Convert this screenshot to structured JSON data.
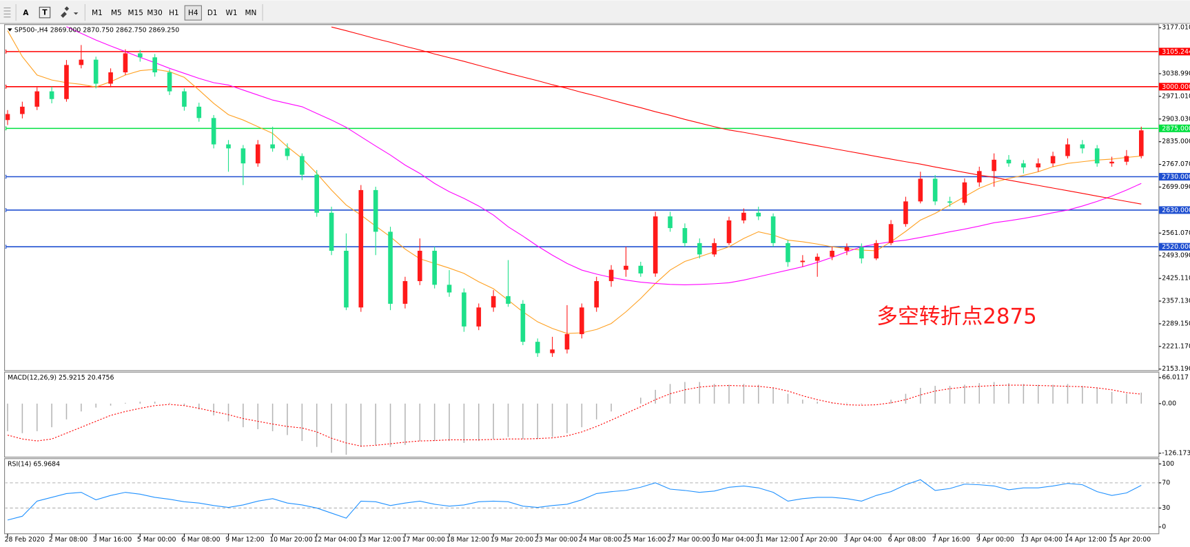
{
  "toolbar": {
    "tools": [
      "A"
    ],
    "timeframes": [
      "M1",
      "M5",
      "M15",
      "M30",
      "H1",
      "H4",
      "D1",
      "W1",
      "MN"
    ],
    "active": "H4"
  },
  "chart_data": [
    {
      "type": "candlestick",
      "title": "SP500-,H4  2869.000 2870.750 2862.750 2869.250",
      "annotation": "多空转折点2875",
      "categories": [
        "28 Feb 2020",
        null,
        null,
        "2 Mar 08:00",
        null,
        null,
        "3 Mar 16:00",
        null,
        null,
        "5 Mar 00:00",
        null,
        null,
        "6 Mar 08:00",
        null,
        null,
        "9 Mar 12:00",
        null,
        null,
        "10 Mar 20:00",
        null,
        null,
        "12 Mar 04:00",
        null,
        null,
        "13 Mar 12:00",
        null,
        null,
        "17 Mar 00:00",
        null,
        null,
        "18 Mar 12:00",
        null,
        null,
        "19 Mar 20:00",
        null,
        null,
        "23 Mar 00:00",
        null,
        null,
        "24 Mar 08:00",
        null,
        null,
        "25 Mar 16:00",
        null,
        null,
        "27 Mar 00:00",
        null,
        null,
        "30 Mar 04:00",
        null,
        null,
        "31 Mar 12:00",
        null,
        null,
        "1 Apr 20:00",
        null,
        null,
        "3 Apr 04:00",
        null,
        null,
        "6 Apr 08:00",
        null,
        null,
        "7 Apr 16:00",
        null,
        null,
        "9 Apr 00:00",
        null,
        null,
        "13 Apr 04:00",
        null,
        null,
        "14 Apr 12:00",
        null,
        null,
        "15 Apr 20:00",
        null,
        null
      ],
      "candles": [
        [
          2900,
          2930,
          2885,
          2918
        ],
        [
          2918,
          2955,
          2905,
          2940
        ],
        [
          2940,
          2998,
          2930,
          2986
        ],
        [
          2986,
          3000,
          2950,
          2963
        ],
        [
          2963,
          3080,
          2955,
          3065
        ],
        [
          3065,
          3125,
          3055,
          3081
        ],
        [
          3081,
          3090,
          2995,
          3009
        ],
        [
          3009,
          3055,
          2998,
          3043
        ],
        [
          3043,
          3112,
          3035,
          3100
        ],
        [
          3100,
          3110,
          3075,
          3088
        ],
        [
          3088,
          3098,
          3030,
          3043
        ],
        [
          3043,
          3052,
          2975,
          2986
        ],
        [
          2986,
          2995,
          2928,
          2940
        ],
        [
          2940,
          2952,
          2895,
          2906
        ],
        [
          2906,
          2915,
          2815,
          2827
        ],
        [
          2827,
          2840,
          2745,
          2815
        ],
        [
          2815,
          2825,
          2705,
          2770
        ],
        [
          2770,
          2840,
          2760,
          2827
        ],
        [
          2827,
          2880,
          2805,
          2815
        ],
        [
          2815,
          2830,
          2780,
          2792
        ],
        [
          2792,
          2800,
          2720,
          2736
        ],
        [
          2736,
          2750,
          2610,
          2622
        ],
        [
          2622,
          2640,
          2495,
          2508
        ],
        [
          2508,
          2560,
          2330,
          2338
        ],
        [
          2338,
          2705,
          2325,
          2690
        ],
        [
          2690,
          2700,
          2495,
          2565
        ],
        [
          2565,
          2580,
          2330,
          2349
        ],
        [
          2349,
          2430,
          2335,
          2417
        ],
        [
          2417,
          2545,
          2405,
          2508
        ],
        [
          2508,
          2520,
          2395,
          2406
        ],
        [
          2406,
          2450,
          2370,
          2383
        ],
        [
          2383,
          2395,
          2265,
          2281
        ],
        [
          2281,
          2350,
          2270,
          2338
        ],
        [
          2338,
          2390,
          2325,
          2372
        ],
        [
          2372,
          2480,
          2340,
          2349
        ],
        [
          2349,
          2360,
          2225,
          2235
        ],
        [
          2235,
          2245,
          2190,
          2201
        ],
        [
          2201,
          2250,
          2190,
          2212
        ],
        [
          2212,
          2345,
          2200,
          2258
        ],
        [
          2258,
          2350,
          2245,
          2338
        ],
        [
          2338,
          2430,
          2325,
          2417
        ],
        [
          2417,
          2465,
          2400,
          2451
        ],
        [
          2451,
          2520,
          2430,
          2463
        ],
        [
          2463,
          2475,
          2430,
          2440
        ],
        [
          2440,
          2625,
          2430,
          2611
        ],
        [
          2611,
          2625,
          2565,
          2576
        ],
        [
          2576,
          2590,
          2520,
          2531
        ],
        [
          2531,
          2545,
          2485,
          2497
        ],
        [
          2497,
          2545,
          2490,
          2531
        ],
        [
          2531,
          2610,
          2525,
          2599
        ],
        [
          2599,
          2635,
          2590,
          2622
        ],
        [
          2622,
          2640,
          2600,
          2611
        ],
        [
          2611,
          2620,
          2520,
          2531
        ],
        [
          2531,
          2540,
          2460,
          2474
        ],
        [
          2474,
          2495,
          2460,
          2478
        ],
        [
          2478,
          2500,
          2430,
          2490
        ],
        [
          2490,
          2520,
          2480,
          2508
        ],
        [
          2508,
          2530,
          2495,
          2519
        ],
        [
          2519,
          2530,
          2470,
          2485
        ],
        [
          2485,
          2540,
          2480,
          2531
        ],
        [
          2531,
          2600,
          2525,
          2588
        ],
        [
          2588,
          2670,
          2580,
          2656
        ],
        [
          2656,
          2745,
          2650,
          2724
        ],
        [
          2724,
          2735,
          2645,
          2656
        ],
        [
          2656,
          2670,
          2640,
          2652
        ],
        [
          2652,
          2725,
          2645,
          2713
        ],
        [
          2713,
          2760,
          2700,
          2747
        ],
        [
          2747,
          2800,
          2700,
          2781
        ],
        [
          2781,
          2795,
          2760,
          2770
        ],
        [
          2770,
          2780,
          2740,
          2758
        ],
        [
          2758,
          2785,
          2745,
          2770
        ],
        [
          2770,
          2805,
          2760,
          2792
        ],
        [
          2792,
          2845,
          2785,
          2827
        ],
        [
          2827,
          2840,
          2800,
          2815
        ],
        [
          2815,
          2825,
          2760,
          2770
        ],
        [
          2770,
          2790,
          2760,
          2775
        ],
        [
          2775,
          2810,
          2765,
          2792
        ],
        [
          2792,
          2880,
          2785,
          2869
        ]
      ],
      "up_color": "#ff1a1a",
      "down_color": "#1ee08a",
      "series": [
        {
          "color": "#ffa020",
          "values": [
            3168,
            3090,
            3035,
            3020,
            3012,
            3007,
            2999,
            3015,
            3035,
            3048,
            3052,
            3045,
            3028,
            2990,
            2950,
            2916,
            2900,
            2880,
            2860,
            2820,
            2785,
            2740,
            2690,
            2645,
            2615,
            2582,
            2550,
            2513,
            2484,
            2470,
            2456,
            2440,
            2415,
            2394,
            2360,
            2325,
            2295,
            2275,
            2260,
            2262,
            2272,
            2290,
            2325,
            2365,
            2410,
            2450,
            2476,
            2490,
            2505,
            2520,
            2545,
            2565,
            2555,
            2540,
            2535,
            2528,
            2520,
            2515,
            2510,
            2508,
            2535,
            2566,
            2600,
            2620,
            2645,
            2670,
            2695,
            2713,
            2725,
            2734,
            2745,
            2760,
            2770,
            2775,
            2780,
            2783,
            2788,
            2792
          ]
        },
        {
          "color": "#ff00ff",
          "values": [
            null,
            null,
            null,
            null,
            3180,
            3160,
            3140,
            3122,
            3105,
            3088,
            3072,
            3055,
            3040,
            3025,
            3012,
            3005,
            2990,
            2975,
            2960,
            2950,
            2940,
            2920,
            2900,
            2878,
            2850,
            2822,
            2795,
            2765,
            2740,
            2710,
            2685,
            2665,
            2642,
            2615,
            2580,
            2552,
            2522,
            2495,
            2470,
            2450,
            2438,
            2428,
            2420,
            2414,
            2410,
            2407,
            2406,
            2407,
            2409,
            2412,
            2420,
            2430,
            2440,
            2450,
            2460,
            2473,
            2488,
            2505,
            2520,
            2528,
            2535,
            2540,
            2548,
            2556,
            2565,
            2573,
            2582,
            2592,
            2598,
            2605,
            2613,
            2622,
            2630,
            2642,
            2656,
            2672,
            2690,
            2710
          ]
        },
        {
          "color": "#ff0000",
          "values": [
            null,
            null,
            null,
            null,
            null,
            null,
            null,
            null,
            null,
            null,
            null,
            null,
            null,
            null,
            null,
            null,
            null,
            null,
            null,
            null,
            null,
            null,
            3179,
            3168,
            3156,
            3144,
            3133,
            3121,
            3110,
            3098,
            3087,
            3076,
            3064,
            3052,
            3040,
            3029,
            3018,
            3006,
            2995,
            2983,
            2972,
            2960,
            2948,
            2937,
            2925,
            2914,
            2902,
            2891,
            2880,
            2870,
            2863,
            2855,
            2847,
            2839,
            2831,
            2823,
            2815,
            2807,
            2799,
            2791,
            2783,
            2775,
            2768,
            2759,
            2751,
            2743,
            2735,
            2728,
            2720,
            2712,
            2704,
            2696,
            2688,
            2680,
            2672,
            2664,
            2656,
            2648
          ]
        }
      ],
      "levels": [
        {
          "value": 3105.244,
          "color": "#ff0000"
        },
        {
          "value": 3000,
          "label": "3000.000",
          "color": "#ff0000"
        },
        {
          "value": 2875,
          "label": "2875.000",
          "color": "#00e040"
        },
        {
          "value": 2730,
          "label": "2730.000",
          "color": "#1f4fd0"
        },
        {
          "value": 2630,
          "label": "2630.000",
          "color": "#1f4fd0"
        },
        {
          "value": 2520,
          "label": "2520.000",
          "color": "#1f4fd0"
        }
      ],
      "ylim": [
        2148.6,
        3186.1
      ],
      "yticks": [
        {
          "value": 3177.01,
          "label": "3177.010"
        },
        {
          "value": 3038.99,
          "label": "3038.990"
        },
        {
          "value": 2971.01,
          "label": "2971.010"
        },
        {
          "value": 2903.03,
          "label": "2903.030"
        },
        {
          "value": 2835,
          "label": "2835.000"
        },
        {
          "value": 2767.07,
          "label": "2767.070"
        },
        {
          "value": 2699.09,
          "label": "2699.090"
        },
        {
          "value": 2561.07,
          "label": "2561.070"
        },
        {
          "value": 2493.09,
          "label": "2493.090"
        },
        {
          "value": 2425.11,
          "label": "2425.110"
        },
        {
          "value": 2357.13,
          "label": "2357.130"
        },
        {
          "value": 2289.15,
          "label": "2289.150"
        },
        {
          "value": 2221.17,
          "label": "2221.170"
        },
        {
          "value": 2153.19,
          "label": "2153.190"
        }
      ]
    },
    {
      "type": "macd",
      "title": "MACD(12,26,9) 25.9215 20.4756",
      "histogram": [
        -70,
        -75,
        -70,
        -60,
        -40,
        -20,
        -10,
        -5,
        2,
        5,
        5,
        2,
        -5,
        -15,
        -30,
        -45,
        -60,
        -65,
        -70,
        -80,
        -95,
        -110,
        -125,
        -130,
        -110,
        -105,
        -110,
        -105,
        -95,
        -95,
        -95,
        -100,
        -95,
        -90,
        -85,
        -90,
        -90,
        -85,
        -75,
        -60,
        -40,
        -20,
        0,
        15,
        35,
        50,
        55,
        55,
        50,
        48,
        50,
        48,
        40,
        25,
        10,
        5,
        2,
        2,
        -2,
        0,
        10,
        25,
        40,
        45,
        45,
        48,
        52,
        55,
        52,
        50,
        48,
        48,
        50,
        45,
        40,
        30,
        25,
        28
      ],
      "histogram_color": "#b4b4b4",
      "signal": [
        -80,
        -90,
        -95,
        -90,
        -75,
        -60,
        -45,
        -30,
        -20,
        -12,
        -5,
        -2,
        -5,
        -12,
        -20,
        -28,
        -38,
        -45,
        -52,
        -58,
        -62,
        -72,
        -88,
        -100,
        -108,
        -106,
        -102,
        -98,
        -95,
        -94,
        -92,
        -92,
        -92,
        -91,
        -90,
        -90,
        -89,
        -87,
        -82,
        -72,
        -58,
        -42,
        -25,
        -8,
        10,
        25,
        35,
        42,
        45,
        46,
        45,
        44,
        40,
        32,
        20,
        10,
        2,
        -3,
        -4,
        -3,
        2,
        10,
        22,
        32,
        38,
        42,
        44,
        46,
        47,
        47,
        46,
        45,
        44,
        43,
        40,
        35,
        28,
        24
      ],
      "signal_color": "#ff0000",
      "ylim": [
        -136,
        80
      ],
      "yticks": [
        66.0117,
        {
          "value": 0,
          "label": "0.00"
        },
        -126.173
      ]
    },
    {
      "type": "line",
      "title": "RSI(14) 65.9684",
      "values": [
        11,
        17,
        41,
        47,
        53,
        55,
        43,
        50,
        55,
        52,
        47,
        44,
        40,
        38,
        34,
        31,
        35,
        41,
        45,
        38,
        35,
        30,
        22,
        14,
        41,
        40,
        34,
        38,
        41,
        36,
        33,
        35,
        40,
        41,
        40,
        33,
        31,
        34,
        36,
        43,
        53,
        56,
        58,
        63,
        70,
        60,
        58,
        55,
        57,
        63,
        65,
        62,
        55,
        41,
        45,
        47,
        47,
        45,
        41,
        50,
        56,
        67,
        75,
        58,
        61,
        68,
        67,
        65,
        59,
        62,
        62,
        65,
        69,
        67,
        56,
        50,
        54,
        66
      ],
      "color": "#1e90ff",
      "levels": [
        70,
        30
      ],
      "ylim": [
        -10.8,
        108.4
      ],
      "yticks": [
        100,
        70,
        30,
        0
      ]
    }
  ]
}
